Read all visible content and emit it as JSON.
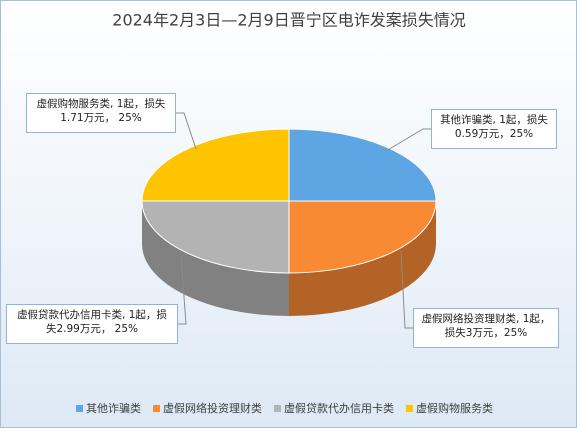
{
  "chart_data": {
    "type": "pie3d",
    "title": "2024年2月3日—2月9日晋宁区电诈发案损失情况",
    "categories": [
      "其他诈骗类",
      "虚假网络投资理财类",
      "虚假贷款代办信用卡类",
      "虚假购物服务类"
    ],
    "values": [
      25,
      25,
      25,
      25
    ],
    "value_labels": [
      "其他诈骗类, 1起，损失0.59万元，25%",
      "虚假网络投资理财类, 1起，损失3万元，25%",
      "虚假贷款代办信用卡类, 1起，损失2.99万元， 25%",
      "虚假购物服务类, 1起，损失1.71万元， 25%"
    ],
    "colors": [
      "#5ea5e4",
      "#f98a34",
      "#b3b3b3",
      "#ffc400"
    ],
    "legend": "bottom"
  }
}
